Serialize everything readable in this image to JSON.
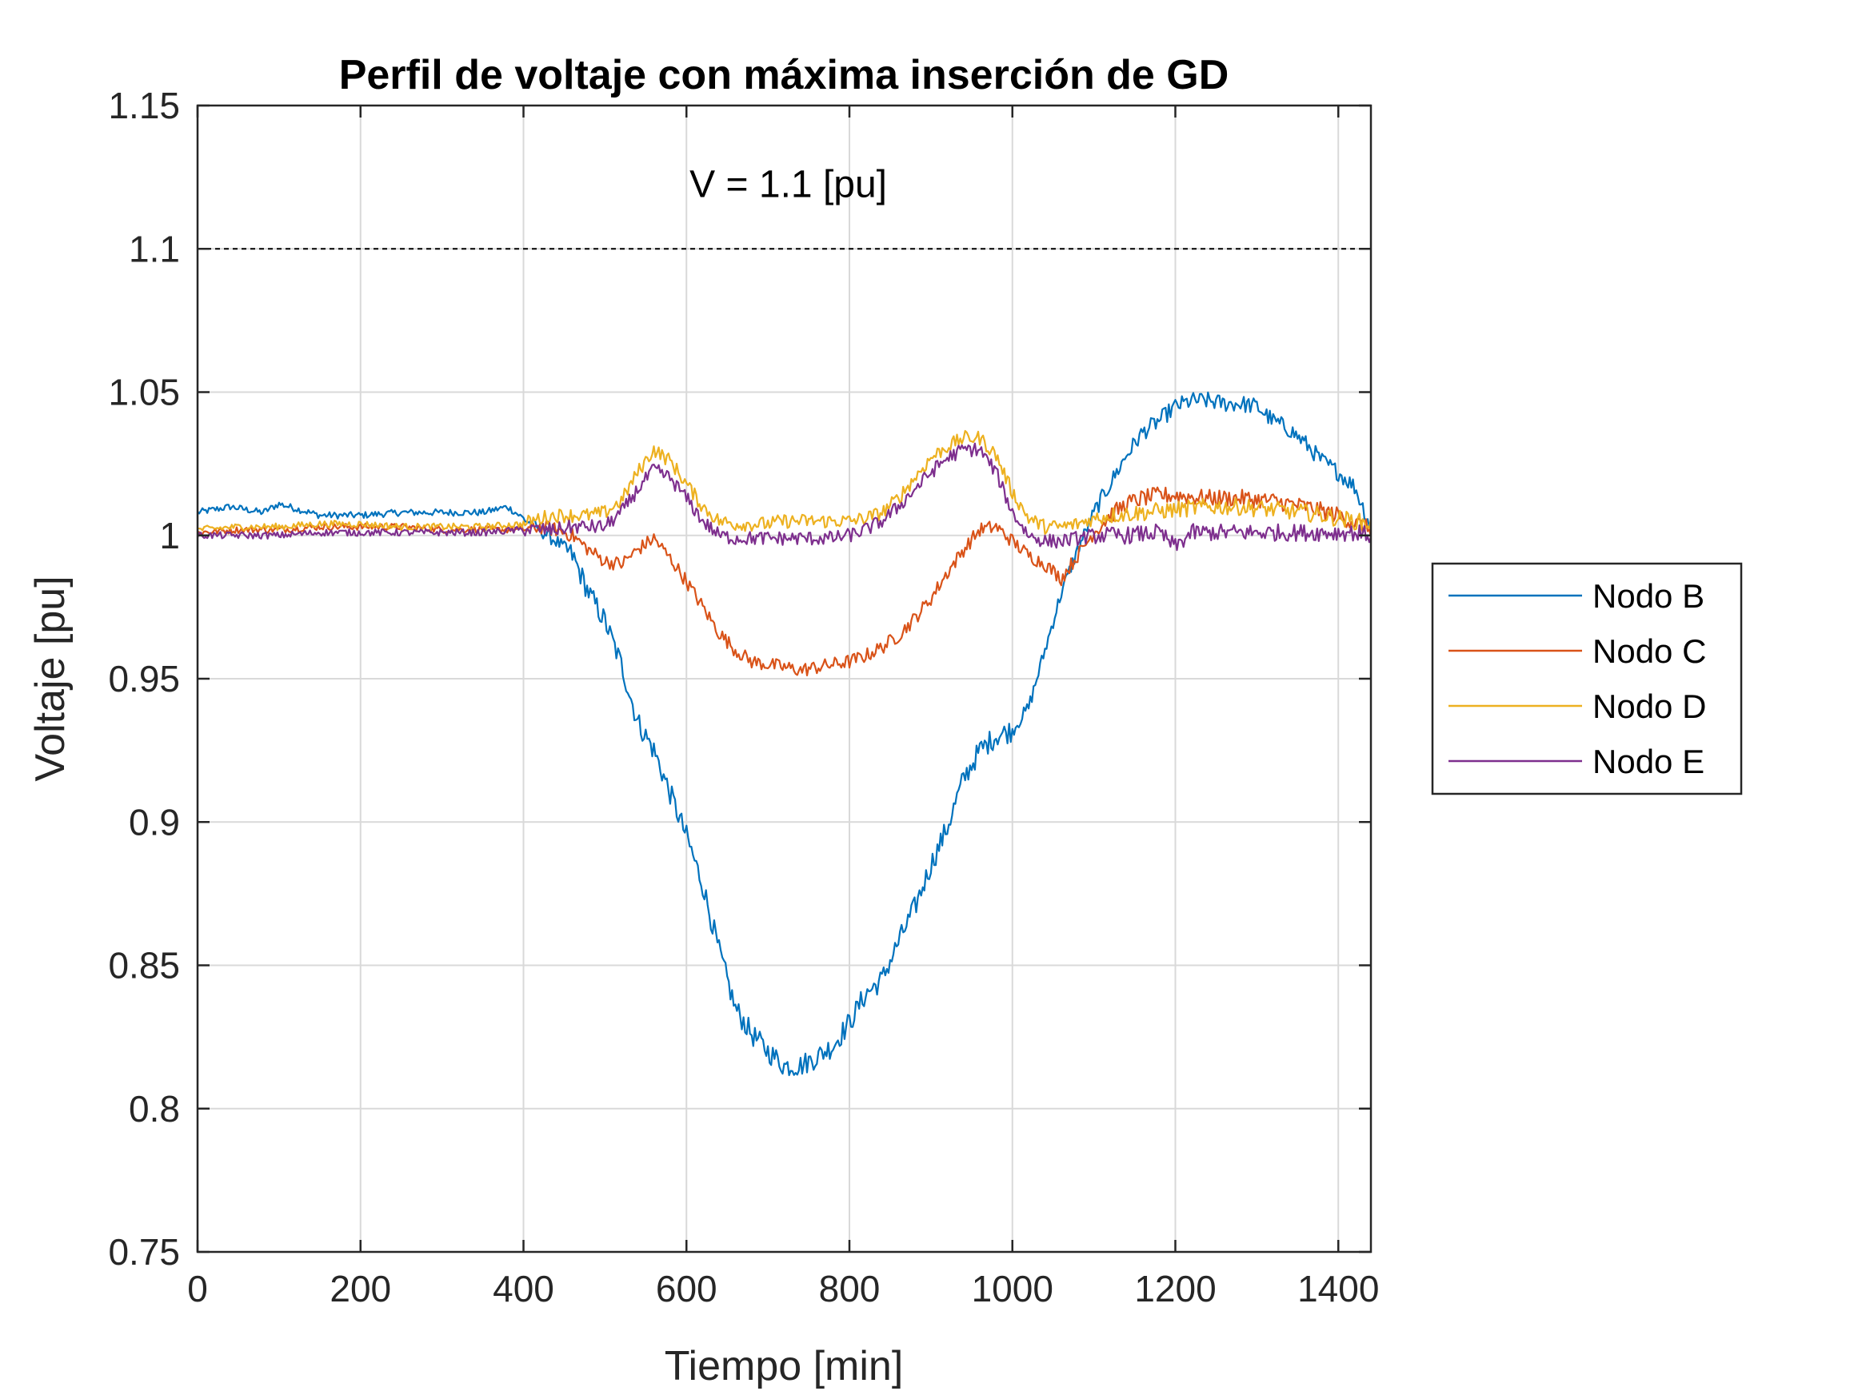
{
  "chart_data": {
    "type": "line",
    "title": "Perfil de voltaje con máxima inserción de GD",
    "xlabel": "Tiempo [min]",
    "ylabel": "Voltaje [pu]",
    "xlim": [
      0,
      1440
    ],
    "ylim": [
      0.75,
      1.15
    ],
    "xticks": [
      0,
      200,
      400,
      600,
      800,
      1000,
      1200,
      1400
    ],
    "xtick_labels": [
      "0",
      "200",
      "400",
      "600",
      "800",
      "1000",
      "1200",
      "1400"
    ],
    "yticks": [
      0.75,
      0.8,
      0.85,
      0.9,
      0.95,
      1.0,
      1.05,
      1.1,
      1.15
    ],
    "ytick_labels": [
      "0.75",
      "0.8",
      "0.85",
      "0.9",
      "0.95",
      "1",
      "1.05",
      "1.1",
      "1.15"
    ],
    "grid": true,
    "legend_position": "outside-right",
    "reference_line": {
      "y": 1.1,
      "style": "dashed",
      "label": "V = 1.1 [pu]",
      "label_x": 725,
      "label_y": 1.118
    },
    "series": [
      {
        "name": "Nodo B",
        "color": "#0072BD",
        "x": [
          0,
          40,
          80,
          100,
          150,
          200,
          250,
          300,
          350,
          380,
          400,
          420,
          440,
          460,
          480,
          500,
          520,
          540,
          560,
          580,
          600,
          620,
          640,
          660,
          680,
          700,
          720,
          740,
          760,
          780,
          800,
          820,
          840,
          860,
          880,
          900,
          920,
          940,
          960,
          980,
          1000,
          1020,
          1040,
          1060,
          1080,
          1100,
          1120,
          1140,
          1160,
          1180,
          1200,
          1220,
          1240,
          1260,
          1280,
          1300,
          1320,
          1340,
          1360,
          1380,
          1400,
          1420,
          1440
        ],
        "y": [
          1.008,
          1.01,
          1.008,
          1.011,
          1.007,
          1.007,
          1.008,
          1.008,
          1.008,
          1.01,
          1.006,
          1.002,
          0.998,
          0.993,
          0.98,
          0.97,
          0.955,
          0.935,
          0.925,
          0.91,
          0.895,
          0.878,
          0.855,
          0.835,
          0.826,
          0.82,
          0.815,
          0.815,
          0.818,
          0.822,
          0.83,
          0.84,
          0.845,
          0.858,
          0.87,
          0.885,
          0.898,
          0.915,
          0.925,
          0.93,
          0.932,
          0.94,
          0.96,
          0.98,
          0.995,
          1.008,
          1.018,
          1.028,
          1.036,
          1.04,
          1.045,
          1.047,
          1.047,
          1.046,
          1.046,
          1.045,
          1.04,
          1.037,
          1.032,
          1.026,
          1.022,
          1.017,
          1.003
        ]
      },
      {
        "name": "Nodo C",
        "color": "#D95319",
        "x": [
          0,
          50,
          100,
          150,
          200,
          250,
          300,
          350,
          400,
          420,
          440,
          460,
          480,
          500,
          520,
          540,
          560,
          580,
          600,
          620,
          640,
          660,
          680,
          700,
          720,
          740,
          760,
          780,
          800,
          820,
          840,
          860,
          880,
          900,
          920,
          940,
          960,
          980,
          1000,
          1020,
          1040,
          1060,
          1080,
          1100,
          1120,
          1140,
          1160,
          1180,
          1200,
          1240,
          1280,
          1320,
          1360,
          1400,
          1440
        ],
        "y": [
          1.001,
          1.002,
          1.002,
          1.003,
          1.003,
          1.003,
          1.002,
          1.002,
          1.002,
          1.003,
          1.002,
          1.0,
          0.995,
          0.991,
          0.99,
          0.995,
          0.999,
          0.992,
          0.984,
          0.975,
          0.966,
          0.96,
          0.956,
          0.955,
          0.954,
          0.953,
          0.954,
          0.955,
          0.956,
          0.958,
          0.961,
          0.965,
          0.971,
          0.978,
          0.987,
          0.995,
          1.002,
          1.003,
          0.998,
          0.993,
          0.99,
          0.985,
          0.993,
          1.001,
          1.007,
          1.011,
          1.013,
          1.014,
          1.014,
          1.013,
          1.013,
          1.012,
          1.01,
          1.007,
          1.002
        ]
      },
      {
        "name": "Nodo D",
        "color": "#EDB120",
        "x": [
          0,
          50,
          100,
          150,
          200,
          250,
          300,
          350,
          400,
          420,
          440,
          460,
          480,
          500,
          520,
          540,
          560,
          580,
          600,
          620,
          640,
          660,
          680,
          700,
          720,
          740,
          760,
          780,
          800,
          820,
          840,
          860,
          880,
          900,
          920,
          940,
          960,
          980,
          1000,
          1020,
          1040,
          1060,
          1080,
          1100,
          1120,
          1160,
          1200,
          1240,
          1280,
          1320,
          1360,
          1400,
          1440
        ],
        "y": [
          1.002,
          1.003,
          1.003,
          1.004,
          1.004,
          1.003,
          1.003,
          1.003,
          1.004,
          1.006,
          1.007,
          1.007,
          1.007,
          1.008,
          1.012,
          1.022,
          1.03,
          1.026,
          1.018,
          1.01,
          1.005,
          1.004,
          1.004,
          1.004,
          1.005,
          1.005,
          1.005,
          1.005,
          1.005,
          1.006,
          1.008,
          1.013,
          1.02,
          1.027,
          1.031,
          1.034,
          1.034,
          1.028,
          1.015,
          1.006,
          1.003,
          1.003,
          1.004,
          1.006,
          1.007,
          1.008,
          1.009,
          1.01,
          1.01,
          1.009,
          1.008,
          1.006,
          1.004
        ]
      },
      {
        "name": "Nodo E",
        "color": "#7E2F8E",
        "x": [
          0,
          50,
          100,
          150,
          200,
          250,
          300,
          350,
          400,
          420,
          440,
          460,
          480,
          500,
          520,
          540,
          560,
          580,
          600,
          620,
          640,
          660,
          680,
          700,
          720,
          740,
          760,
          780,
          800,
          820,
          840,
          860,
          880,
          900,
          920,
          940,
          960,
          980,
          1000,
          1020,
          1040,
          1060,
          1080,
          1100,
          1140,
          1180,
          1200,
          1220,
          1260,
          1300,
          1340,
          1380,
          1420,
          1440
        ],
        "y": [
          1.0,
          1.0,
          1.0,
          1.001,
          1.001,
          1.001,
          1.001,
          1.001,
          1.002,
          1.002,
          1.002,
          1.003,
          1.003,
          1.003,
          1.008,
          1.016,
          1.023,
          1.02,
          1.013,
          1.005,
          1.0,
          0.999,
          0.999,
          0.999,
          0.999,
          0.999,
          0.999,
          0.999,
          1.0,
          1.002,
          1.005,
          1.01,
          1.016,
          1.022,
          1.027,
          1.03,
          1.03,
          1.022,
          1.008,
          1.0,
          0.998,
          0.998,
          0.999,
          1.0,
          1.0,
          1.001,
          0.996,
          1.001,
          1.001,
          1.001,
          1.001,
          1.001,
          1.001,
          1.0
        ]
      }
    ]
  }
}
